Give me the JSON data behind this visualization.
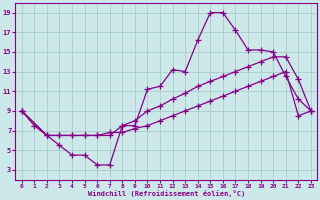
{
  "xlabel": "Windchill (Refroidissement éolien,°C)",
  "bg_color": "#cce8e8",
  "line_color": "#880088",
  "grid_color": "#aacccc",
  "xlim": [
    -0.5,
    23.5
  ],
  "ylim": [
    2,
    20
  ],
  "xticks": [
    0,
    1,
    2,
    3,
    4,
    5,
    6,
    7,
    8,
    9,
    10,
    11,
    12,
    13,
    14,
    15,
    16,
    17,
    18,
    19,
    20,
    21,
    22,
    23
  ],
  "yticks": [
    3,
    5,
    7,
    9,
    11,
    13,
    15,
    17,
    19
  ],
  "line1_x": [
    0,
    1,
    2,
    3,
    4,
    5,
    6,
    7,
    8,
    9,
    10,
    11,
    12,
    13,
    14,
    15,
    16,
    17,
    18,
    19,
    20,
    21,
    22,
    23
  ],
  "line1_y": [
    9,
    7.5,
    6.5,
    5.5,
    4.5,
    4.5,
    3.5,
    3.5,
    7.5,
    7.5,
    11.2,
    11.5,
    13.2,
    13.0,
    16.2,
    19.0,
    19.0,
    17.2,
    15.2,
    15.2,
    15.0,
    12.5,
    10.2,
    9.0
  ],
  "line2_x": [
    0,
    2,
    3,
    4,
    5,
    6,
    7,
    8,
    9,
    10,
    11,
    12,
    13,
    14,
    15,
    16,
    17,
    18,
    19,
    20,
    21,
    22,
    23
  ],
  "line2_y": [
    9,
    6.5,
    6.5,
    6.5,
    6.5,
    6.5,
    6.5,
    7.5,
    8.0,
    9.0,
    9.5,
    10.2,
    10.8,
    11.5,
    12.0,
    12.5,
    13.0,
    13.5,
    14.0,
    14.5,
    14.5,
    12.2,
    9.0
  ],
  "line3_x": [
    0,
    2,
    3,
    4,
    5,
    6,
    7,
    8,
    9,
    10,
    11,
    12,
    13,
    14,
    15,
    16,
    17,
    18,
    19,
    20,
    21,
    22,
    23
  ],
  "line3_y": [
    9,
    6.5,
    6.5,
    6.5,
    6.5,
    6.5,
    6.8,
    6.8,
    7.2,
    7.5,
    8.0,
    8.5,
    9.0,
    9.5,
    10.0,
    10.5,
    11.0,
    11.5,
    12.0,
    12.5,
    13.0,
    8.5,
    9.0
  ]
}
